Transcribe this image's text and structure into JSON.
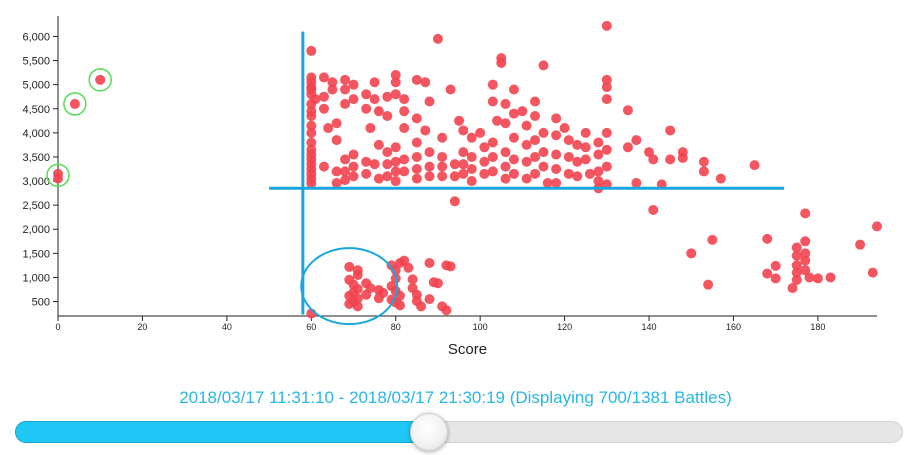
{
  "chart_data": {
    "type": "scatter",
    "xlabel": "Score",
    "ylabel": "",
    "title": "",
    "xlim": [
      0,
      194
    ],
    "ylim": [
      200,
      6300
    ],
    "x_ticks": [
      0,
      20,
      40,
      60,
      80,
      100,
      120,
      140,
      160,
      180
    ],
    "y_ticks": [
      500,
      1000,
      1500,
      2000,
      2500,
      3000,
      3500,
      4000,
      4500,
      5000,
      5500,
      6000
    ],
    "point_color": "#f2444f",
    "reference_lines": {
      "color": "#18a6de",
      "vertical": {
        "x": 58,
        "y_from": 230,
        "y_to": 6100
      },
      "horizontal": {
        "y": 2850,
        "x_from": 50,
        "x_to": 172
      }
    },
    "highlight_circles": [
      {
        "x": 10,
        "y": 5100,
        "color": "#55dd55"
      },
      {
        "x": 4,
        "y": 4600,
        "color": "#55dd55"
      },
      {
        "x": 0,
        "y": 3120,
        "color": "#55dd55"
      },
      {
        "x": 69,
        "y": 820,
        "color": "#18a6de"
      }
    ],
    "series": [
      {
        "points": [
          [
            10,
            5100
          ],
          [
            4,
            4600
          ],
          [
            0,
            3050
          ],
          [
            0,
            3150
          ],
          [
            60,
            5700
          ],
          [
            60,
            5150
          ],
          [
            60,
            5050
          ],
          [
            60,
            4900
          ],
          [
            60,
            4800
          ],
          [
            60,
            4600
          ],
          [
            60,
            4450
          ],
          [
            60,
            4350
          ],
          [
            60,
            4150
          ],
          [
            60,
            4000
          ],
          [
            60,
            3800
          ],
          [
            60,
            3650
          ],
          [
            60,
            3550
          ],
          [
            60,
            3450
          ],
          [
            60,
            3350
          ],
          [
            60,
            3250
          ],
          [
            60,
            3150
          ],
          [
            60,
            3050
          ],
          [
            60,
            2950
          ],
          [
            60,
            4950
          ],
          [
            61,
            4700
          ],
          [
            60,
            250
          ],
          [
            63,
            5150
          ],
          [
            63,
            4750
          ],
          [
            63,
            4500
          ],
          [
            64,
            4100
          ],
          [
            63,
            3300
          ],
          [
            65,
            5050
          ],
          [
            65,
            4900
          ],
          [
            66,
            4200
          ],
          [
            66,
            3850
          ],
          [
            66,
            3200
          ],
          [
            66,
            2960
          ],
          [
            68,
            5100
          ],
          [
            68,
            4900
          ],
          [
            68,
            4600
          ],
          [
            68,
            3450
          ],
          [
            68,
            3200
          ],
          [
            68,
            3020
          ],
          [
            70,
            5000
          ],
          [
            70,
            4700
          ],
          [
            70,
            3550
          ],
          [
            70,
            3300
          ],
          [
            70,
            3100
          ],
          [
            73,
            4800
          ],
          [
            73,
            4500
          ],
          [
            74,
            4100
          ],
          [
            73,
            3400
          ],
          [
            73,
            3150
          ],
          [
            75,
            5050
          ],
          [
            75,
            4700
          ],
          [
            76,
            4450
          ],
          [
            76,
            3750
          ],
          [
            75,
            3350
          ],
          [
            76,
            3050
          ],
          [
            78,
            4750
          ],
          [
            78,
            4350
          ],
          [
            78,
            3600
          ],
          [
            78,
            3350
          ],
          [
            78,
            3100
          ],
          [
            80,
            5200
          ],
          [
            80,
            5050
          ],
          [
            80,
            4800
          ],
          [
            80,
            3700
          ],
          [
            80,
            3400
          ],
          [
            80,
            3200
          ],
          [
            80,
            3000
          ],
          [
            82,
            4700
          ],
          [
            82,
            4450
          ],
          [
            82,
            4100
          ],
          [
            82,
            3450
          ],
          [
            82,
            3200
          ],
          [
            85,
            5100
          ],
          [
            85,
            4300
          ],
          [
            85,
            3800
          ],
          [
            85,
            3500
          ],
          [
            85,
            3250
          ],
          [
            85,
            3050
          ],
          [
            87,
            5050
          ],
          [
            88,
            4650
          ],
          [
            87,
            4050
          ],
          [
            88,
            3600
          ],
          [
            88,
            3300
          ],
          [
            88,
            3100
          ],
          [
            90,
            5950
          ],
          [
            91,
            3900
          ],
          [
            91,
            3500
          ],
          [
            91,
            3300
          ],
          [
            91,
            3100
          ],
          [
            93,
            4900
          ],
          [
            94,
            3350
          ],
          [
            94,
            3100
          ],
          [
            94,
            2580
          ],
          [
            95,
            4250
          ],
          [
            96,
            4050
          ],
          [
            96,
            3600
          ],
          [
            96,
            3350
          ],
          [
            96,
            3150
          ],
          [
            98,
            3900
          ],
          [
            98,
            3500
          ],
          [
            98,
            3250
          ],
          [
            98,
            3000
          ],
          [
            100,
            4000
          ],
          [
            101,
            3700
          ],
          [
            101,
            3400
          ],
          [
            101,
            3150
          ],
          [
            103,
            5000
          ],
          [
            103,
            4650
          ],
          [
            104,
            4250
          ],
          [
            103,
            3800
          ],
          [
            103,
            3500
          ],
          [
            103,
            3200
          ],
          [
            105,
            5550
          ],
          [
            105,
            5450
          ],
          [
            106,
            4600
          ],
          [
            106,
            4200
          ],
          [
            106,
            3600
          ],
          [
            106,
            3300
          ],
          [
            106,
            3050
          ],
          [
            108,
            4900
          ],
          [
            108,
            4400
          ],
          [
            108,
            3900
          ],
          [
            108,
            3450
          ],
          [
            108,
            3150
          ],
          [
            110,
            4450
          ],
          [
            111,
            4150
          ],
          [
            111,
            3750
          ],
          [
            111,
            3400
          ],
          [
            111,
            3050
          ],
          [
            113,
            4650
          ],
          [
            113,
            4350
          ],
          [
            113,
            3850
          ],
          [
            113,
            3500
          ],
          [
            113,
            3150
          ],
          [
            115,
            5400
          ],
          [
            115,
            4000
          ],
          [
            115,
            3600
          ],
          [
            115,
            3300
          ],
          [
            116,
            2960
          ],
          [
            118,
            4300
          ],
          [
            118,
            3950
          ],
          [
            118,
            3550
          ],
          [
            118,
            3250
          ],
          [
            118,
            2960
          ],
          [
            120,
            4100
          ],
          [
            121,
            3850
          ],
          [
            121,
            3500
          ],
          [
            121,
            3150
          ],
          [
            123,
            3750
          ],
          [
            123,
            3400
          ],
          [
            123,
            3100
          ],
          [
            125,
            4000
          ],
          [
            125,
            3700
          ],
          [
            125,
            3450
          ],
          [
            126,
            3150
          ],
          [
            128,
            3800
          ],
          [
            128,
            3550
          ],
          [
            128,
            3200
          ],
          [
            128,
            3000
          ],
          [
            130,
            6220
          ],
          [
            130,
            5100
          ],
          [
            130,
            4950
          ],
          [
            130,
            4700
          ],
          [
            130,
            4000
          ],
          [
            130,
            3650
          ],
          [
            130,
            3300
          ],
          [
            130,
            2930
          ],
          [
            128,
            2850
          ],
          [
            135,
            4470
          ],
          [
            135,
            3700
          ],
          [
            137,
            3850
          ],
          [
            137,
            2960
          ],
          [
            140,
            3600
          ],
          [
            141,
            3450
          ],
          [
            141,
            2400
          ],
          [
            143,
            2930
          ],
          [
            145,
            4050
          ],
          [
            145,
            3450
          ],
          [
            148,
            3600
          ],
          [
            148,
            3480
          ],
          [
            150,
            1500
          ],
          [
            153,
            3400
          ],
          [
            153,
            3200
          ],
          [
            154,
            850
          ],
          [
            155,
            1780
          ],
          [
            157,
            3050
          ],
          [
            165,
            3330
          ],
          [
            168,
            1800
          ],
          [
            168,
            1080
          ],
          [
            170,
            980
          ],
          [
            170,
            1240
          ],
          [
            174,
            780
          ],
          [
            175,
            1450
          ],
          [
            175,
            1250
          ],
          [
            175,
            1100
          ],
          [
            175,
            950
          ],
          [
            175,
            1620
          ],
          [
            177,
            1750
          ],
          [
            177,
            1500
          ],
          [
            177,
            1350
          ],
          [
            177,
            1150
          ],
          [
            177,
            2330
          ],
          [
            178,
            1000
          ],
          [
            180,
            980
          ],
          [
            183,
            1000
          ],
          [
            190,
            1680
          ],
          [
            193,
            1100
          ],
          [
            194,
            2060
          ],
          [
            69,
            1220
          ],
          [
            71,
            1150
          ],
          [
            71,
            1050
          ],
          [
            69,
            950
          ],
          [
            70,
            850
          ],
          [
            71,
            760
          ],
          [
            70,
            690
          ],
          [
            69,
            620
          ],
          [
            71,
            560
          ],
          [
            70,
            500
          ],
          [
            69,
            450
          ],
          [
            71,
            400
          ],
          [
            73,
            880
          ],
          [
            74,
            780
          ],
          [
            73,
            640
          ],
          [
            76,
            740
          ],
          [
            77,
            680
          ],
          [
            76,
            570
          ],
          [
            79,
            1250
          ],
          [
            80,
            1150
          ],
          [
            81,
            1300
          ],
          [
            80,
            980
          ],
          [
            79,
            820
          ],
          [
            80,
            720
          ],
          [
            81,
            620
          ],
          [
            79,
            540
          ],
          [
            80,
            480
          ],
          [
            81,
            420
          ],
          [
            82,
            1350
          ],
          [
            83,
            1200
          ],
          [
            84,
            960
          ],
          [
            84,
            780
          ],
          [
            85,
            640
          ],
          [
            85,
            510
          ],
          [
            86,
            400
          ],
          [
            88,
            1300
          ],
          [
            89,
            900
          ],
          [
            88,
            550
          ],
          [
            90,
            880
          ],
          [
            92,
            1250
          ],
          [
            93,
            1230
          ],
          [
            91,
            400
          ],
          [
            92,
            320
          ]
        ]
      }
    ]
  },
  "slider": {
    "range_text": "2018/03/17 11:31:10 - 2018/03/17 21:30:19 (Displaying 700/1381 Battles)",
    "value": 700,
    "max": 1381
  }
}
